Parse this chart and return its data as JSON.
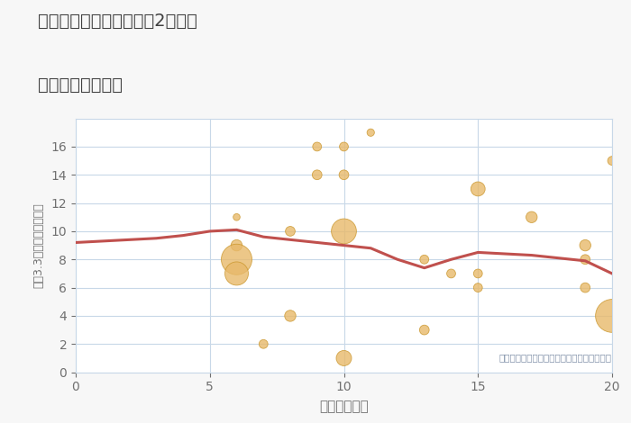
{
  "title_line1": "三重県名張市桔梗が丘西2番町の",
  "title_line2": "駅距離別土地価格",
  "xlabel": "駅距離（分）",
  "ylabel": "坪（3.3㎡）単価（万円）",
  "annotation": "円の大きさは、取引のあった物件面積を示す",
  "xlim": [
    0,
    20
  ],
  "ylim": [
    0,
    18
  ],
  "yticks": [
    0,
    2,
    4,
    6,
    8,
    10,
    12,
    14,
    16
  ],
  "xticks": [
    0,
    5,
    10,
    15,
    20
  ],
  "background_color": "#f7f7f7",
  "plot_bg_color": "#ffffff",
  "bubble_color": "#e8b96a",
  "bubble_edge_color": "#c9952a",
  "line_color": "#c0504d",
  "grid_color": "#c8d8e8",
  "title_color": "#404040",
  "label_color": "#707070",
  "annotation_color": "#8090a8",
  "scatter_x": [
    6,
    6,
    6,
    6,
    7,
    8,
    8,
    9,
    9,
    10,
    10,
    10,
    10,
    11,
    13,
    13,
    14,
    15,
    15,
    15,
    17,
    19,
    19,
    19,
    20,
    20
  ],
  "scatter_y": [
    11,
    9,
    8,
    7,
    2,
    4,
    10,
    16,
    14,
    16,
    14,
    10,
    1,
    17,
    8,
    3,
    7,
    13,
    7,
    6,
    11,
    9,
    8,
    6,
    4,
    15
  ],
  "scatter_size": [
    30,
    80,
    600,
    350,
    50,
    80,
    60,
    50,
    60,
    50,
    60,
    400,
    150,
    35,
    50,
    60,
    50,
    130,
    50,
    50,
    80,
    80,
    60,
    60,
    700,
    50
  ],
  "line_x": [
    0,
    1,
    2,
    3,
    4,
    5,
    6,
    7,
    8,
    9,
    10,
    11,
    12,
    13,
    14,
    15,
    16,
    17,
    18,
    19,
    20
  ],
  "line_y": [
    9.2,
    9.3,
    9.4,
    9.5,
    9.7,
    10.0,
    10.1,
    9.6,
    9.4,
    9.2,
    9.0,
    8.8,
    8.0,
    7.4,
    8.0,
    8.5,
    8.4,
    8.3,
    8.1,
    7.9,
    7.0
  ]
}
